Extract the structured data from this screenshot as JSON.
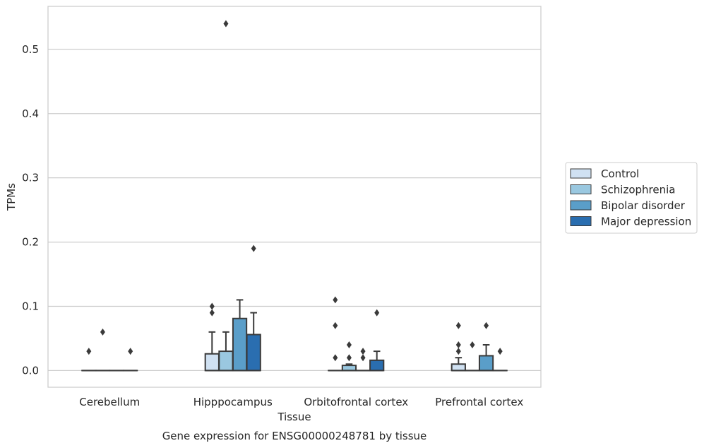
{
  "caption": "Gene expression for ENSG00000248781 by tissue",
  "chart_data": {
    "type": "box",
    "xlabel": "Tissue",
    "ylabel": "TPMs",
    "ylim": [
      -0.026,
      0.567
    ],
    "yticks": [
      0.0,
      0.1,
      0.2,
      0.3,
      0.4,
      0.5
    ],
    "ytick_labels": [
      "0.0",
      "0.1",
      "0.2",
      "0.3",
      "0.4",
      "0.5"
    ],
    "grid": "horizontal",
    "legend_position": "right",
    "categories": [
      "Cerebellum",
      "Hipppocampus",
      "Orbitofrontal cortex",
      "Prefrontal cortex"
    ],
    "series": [
      {
        "name": "Control",
        "color": "#d0e1f2",
        "boxes": [
          {
            "q1": 0.0,
            "median": 0.0,
            "q3": 0.0,
            "whisker_low": 0.0,
            "whisker_high": 0.0,
            "outliers": [
              0.03
            ]
          },
          {
            "q1": 0.0,
            "median": 0.0,
            "q3": 0.026,
            "whisker_low": 0.0,
            "whisker_high": 0.06,
            "outliers": [
              0.09,
              0.1
            ]
          },
          {
            "q1": 0.0,
            "median": 0.0,
            "q3": 0.0,
            "whisker_low": 0.0,
            "whisker_high": 0.0,
            "outliers": [
              0.02,
              0.07,
              0.11
            ]
          },
          {
            "q1": 0.0,
            "median": 0.0,
            "q3": 0.01,
            "whisker_low": 0.0,
            "whisker_high": 0.02,
            "outliers": [
              0.03,
              0.04,
              0.07
            ]
          }
        ]
      },
      {
        "name": "Schizophrenia",
        "color": "#9ac8e0",
        "boxes": [
          {
            "q1": 0.0,
            "median": 0.0,
            "q3": 0.0,
            "whisker_low": 0.0,
            "whisker_high": 0.0,
            "outliers": [
              0.06
            ]
          },
          {
            "q1": 0.0,
            "median": 0.0,
            "q3": 0.03,
            "whisker_low": 0.0,
            "whisker_high": 0.06,
            "outliers": [
              0.54
            ]
          },
          {
            "q1": 0.0,
            "median": 0.0,
            "q3": 0.008,
            "whisker_low": 0.0,
            "whisker_high": 0.01,
            "outliers": [
              0.02,
              0.04
            ]
          },
          {
            "q1": 0.0,
            "median": 0.0,
            "q3": 0.0,
            "whisker_low": 0.0,
            "whisker_high": 0.0,
            "outliers": [
              0.04
            ]
          }
        ]
      },
      {
        "name": "Bipolar disorder",
        "color": "#5a9ec9",
        "boxes": [
          {
            "q1": 0.0,
            "median": 0.0,
            "q3": 0.0,
            "whisker_low": 0.0,
            "whisker_high": 0.0,
            "outliers": []
          },
          {
            "q1": 0.0,
            "median": 0.0,
            "q3": 0.081,
            "whisker_low": 0.0,
            "whisker_high": 0.11,
            "outliers": []
          },
          {
            "q1": 0.0,
            "median": 0.0,
            "q3": 0.0,
            "whisker_low": 0.0,
            "whisker_high": 0.0,
            "outliers": [
              0.02,
              0.03
            ]
          },
          {
            "q1": 0.0,
            "median": 0.0,
            "q3": 0.023,
            "whisker_low": 0.0,
            "whisker_high": 0.04,
            "outliers": [
              0.07
            ]
          }
        ]
      },
      {
        "name": "Major depression",
        "color": "#2a6eb0",
        "boxes": [
          {
            "q1": 0.0,
            "median": 0.0,
            "q3": 0.0,
            "whisker_low": 0.0,
            "whisker_high": 0.0,
            "outliers": [
              0.03
            ]
          },
          {
            "q1": 0.0,
            "median": 0.0,
            "q3": 0.056,
            "whisker_low": 0.0,
            "whisker_high": 0.09,
            "outliers": [
              0.19
            ]
          },
          {
            "q1": 0.0,
            "median": 0.0,
            "q3": 0.016,
            "whisker_low": 0.0,
            "whisker_high": 0.03,
            "outliers": [
              0.09
            ]
          },
          {
            "q1": 0.0,
            "median": 0.0,
            "q3": 0.0,
            "whisker_low": 0.0,
            "whisker_high": 0.0,
            "outliers": [
              0.03
            ]
          }
        ]
      }
    ]
  }
}
